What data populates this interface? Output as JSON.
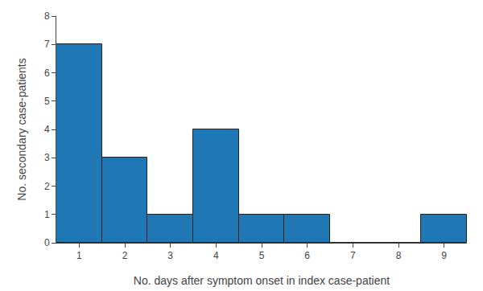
{
  "chart_data": {
    "type": "bar",
    "x": [
      1,
      2,
      3,
      4,
      5,
      6,
      7,
      8,
      9
    ],
    "values": [
      7,
      3,
      1,
      4,
      1,
      1,
      0,
      0,
      1
    ],
    "xlabel": "No. days after symptom onset in index case-patient",
    "ylabel": "No. secondary case-patients",
    "xlim": [
      0.5,
      9.5
    ],
    "ylim": [
      0,
      8
    ],
    "xticks": [
      1,
      2,
      3,
      4,
      5,
      6,
      7,
      8,
      9
    ],
    "yticks": [
      0,
      1,
      2,
      3,
      4,
      5,
      6,
      7,
      8
    ],
    "grid": false
  }
}
